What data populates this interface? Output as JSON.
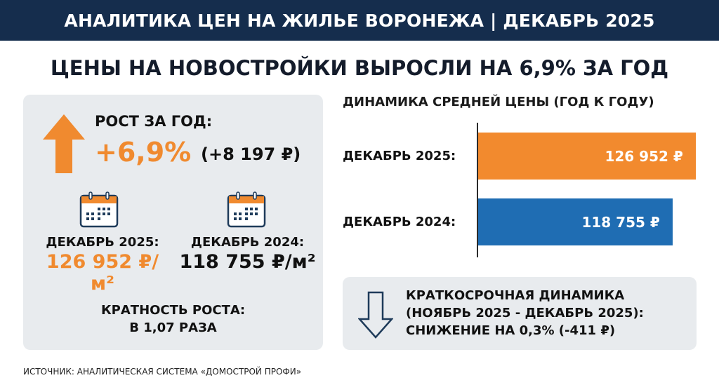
{
  "header": {
    "title": "АНАЛИТИКА ЦЕН НА ЖИЛЬЕ ВОРОНЕЖА | ДЕКАБРЬ 2025"
  },
  "headline": "ЦЕНЫ НА НОВОСТРОЙКИ ВЫРОСЛИ НА 6,9% ЗА ГОД",
  "summary": {
    "growth_label": "РОСТ ЗА ГОД:",
    "growth_pct": "+6,9%",
    "growth_abs": "(+8 197 ₽)",
    "current": {
      "label": "ДЕКАБРЬ 2025:",
      "value": "126 952 ₽/м²"
    },
    "previous": {
      "label": "ДЕКАБРЬ 2024:",
      "value": "118 755 ₽/м²"
    },
    "ratio_label": "КРАТНОСТЬ РОСТА:",
    "ratio_value": "В 1,07 РАЗА",
    "icons": {
      "growth": "arrow-up-icon",
      "date": "calendar-icon"
    }
  },
  "chart_data": {
    "type": "bar",
    "orientation": "horizontal",
    "title": "ДИНАМИКА СРЕДНЕЙ ЦЕНЫ (ГОД К ГОДУ)",
    "categories": [
      "ДЕКАБРЬ 2025:",
      "ДЕКАБРЬ 2024:"
    ],
    "values": [
      126952,
      118755
    ],
    "value_labels": [
      "126 952 ₽",
      "118 755 ₽"
    ],
    "colors": [
      "#f28a2e",
      "#1f6db3"
    ],
    "xlim": [
      50000,
      127000
    ],
    "grid": false
  },
  "short_term": {
    "icon": "arrow-down-outline-icon",
    "lines": [
      "КРАТКОСРОЧНАЯ ДИНАМИКА",
      "(НОЯБРЬ 2025 - ДЕКАБРЬ 2025):",
      "СНИЖЕНИЕ НА 0,3% (-411 ₽)"
    ]
  },
  "source": "ИСТОЧНИК: АНАЛИТИЧЕСКАЯ СИСТЕМА «ДОМОСТРОЙ ПРОФИ»",
  "colors": {
    "header": "#152d4d",
    "accent": "#f08a2f",
    "blue": "#1f6db3",
    "panel": "#e8ebee"
  }
}
